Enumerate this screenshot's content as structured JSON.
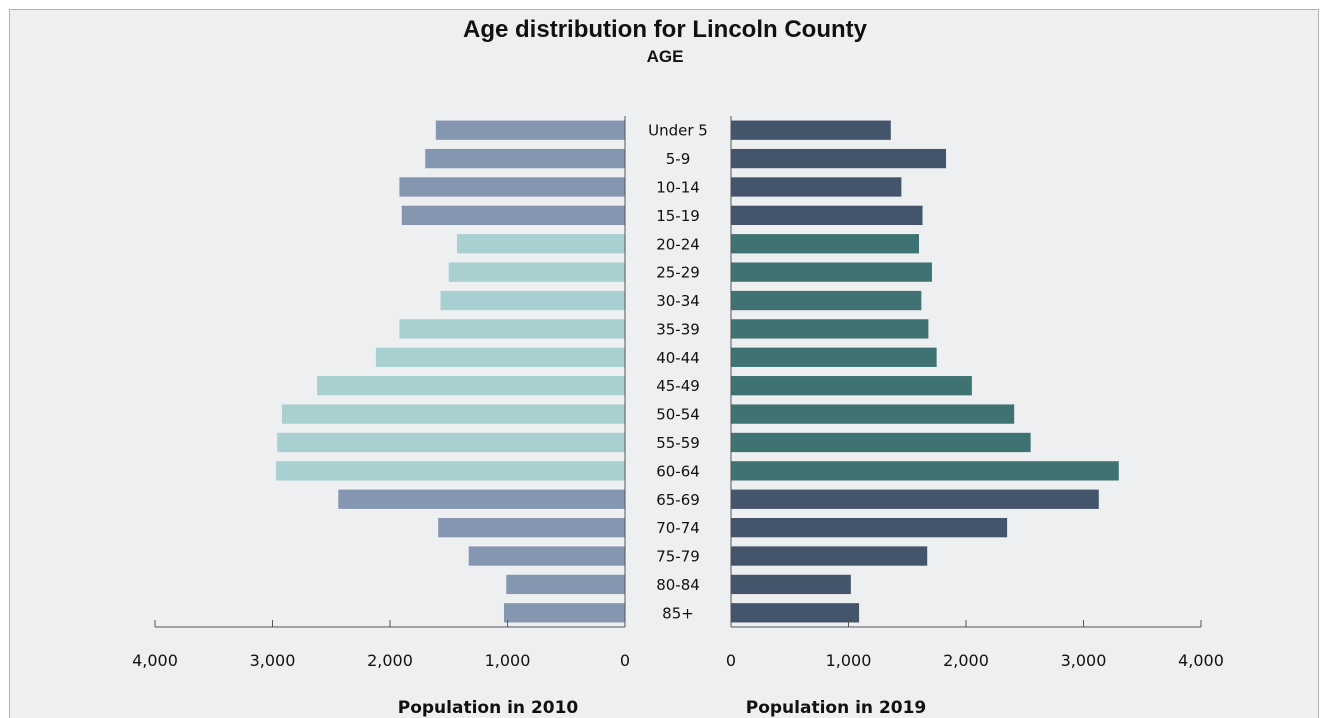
{
  "chart_data": {
    "type": "bar",
    "orientation": "horizontal",
    "layout": "population-pyramid",
    "title": "Age distribution for Lincoln County",
    "subtitle": "AGE",
    "categories": [
      "Under 5",
      "5-9",
      "10-14",
      "15-19",
      "20-24",
      "25-29",
      "30-34",
      "35-39",
      "40-44",
      "45-49",
      "50-54",
      "55-59",
      "60-64",
      "65-69",
      "70-74",
      "75-79",
      "80-84",
      "85+"
    ],
    "series": [
      {
        "name": "Population in 2010",
        "side": "left",
        "values": [
          1610,
          1700,
          1920,
          1900,
          1430,
          1500,
          1570,
          1920,
          2120,
          2620,
          2920,
          2960,
          2970,
          2440,
          1590,
          1330,
          1010,
          1030
        ],
        "colors": [
          "#8496b0",
          "#8496b0",
          "#8496b0",
          "#8496b0",
          "#a8d0d0",
          "#a8d0d0",
          "#a8d0d0",
          "#a8d0d0",
          "#a8d0d0",
          "#a8d0d0",
          "#a8d0d0",
          "#a8d0d0",
          "#a8d0d0",
          "#8496b0",
          "#8496b0",
          "#8496b0",
          "#8496b0",
          "#8496b0"
        ]
      },
      {
        "name": "Population in 2019",
        "side": "right",
        "values": [
          1360,
          1830,
          1450,
          1630,
          1600,
          1710,
          1620,
          1680,
          1750,
          2050,
          2410,
          2550,
          3300,
          3130,
          2350,
          1670,
          1020,
          1090
        ],
        "colors": [
          "#44546a",
          "#44546a",
          "#44546a",
          "#44546a",
          "#3f7272",
          "#3f7272",
          "#3f7272",
          "#3f7272",
          "#3f7272",
          "#3f7272",
          "#3f7272",
          "#3f7272",
          "#3f7272",
          "#44546a",
          "#44546a",
          "#44546a",
          "#44546a",
          "#44546a"
        ]
      }
    ],
    "axes": {
      "left": {
        "label": "Population in 2010",
        "ticks": [
          "4,000",
          "3,000",
          "2,000",
          "1,000",
          "0"
        ],
        "tick_values": [
          4000,
          3000,
          2000,
          1000,
          0
        ],
        "range": [
          0,
          4000
        ],
        "reversed": true
      },
      "right": {
        "label": "Population in 2019",
        "ticks": [
          "0",
          "1,000",
          "2,000",
          "3,000",
          "4,000"
        ],
        "tick_values": [
          0,
          1000,
          2000,
          3000,
          4000
        ],
        "range": [
          0,
          4000
        ]
      }
    },
    "grid": false,
    "legend": "none"
  }
}
